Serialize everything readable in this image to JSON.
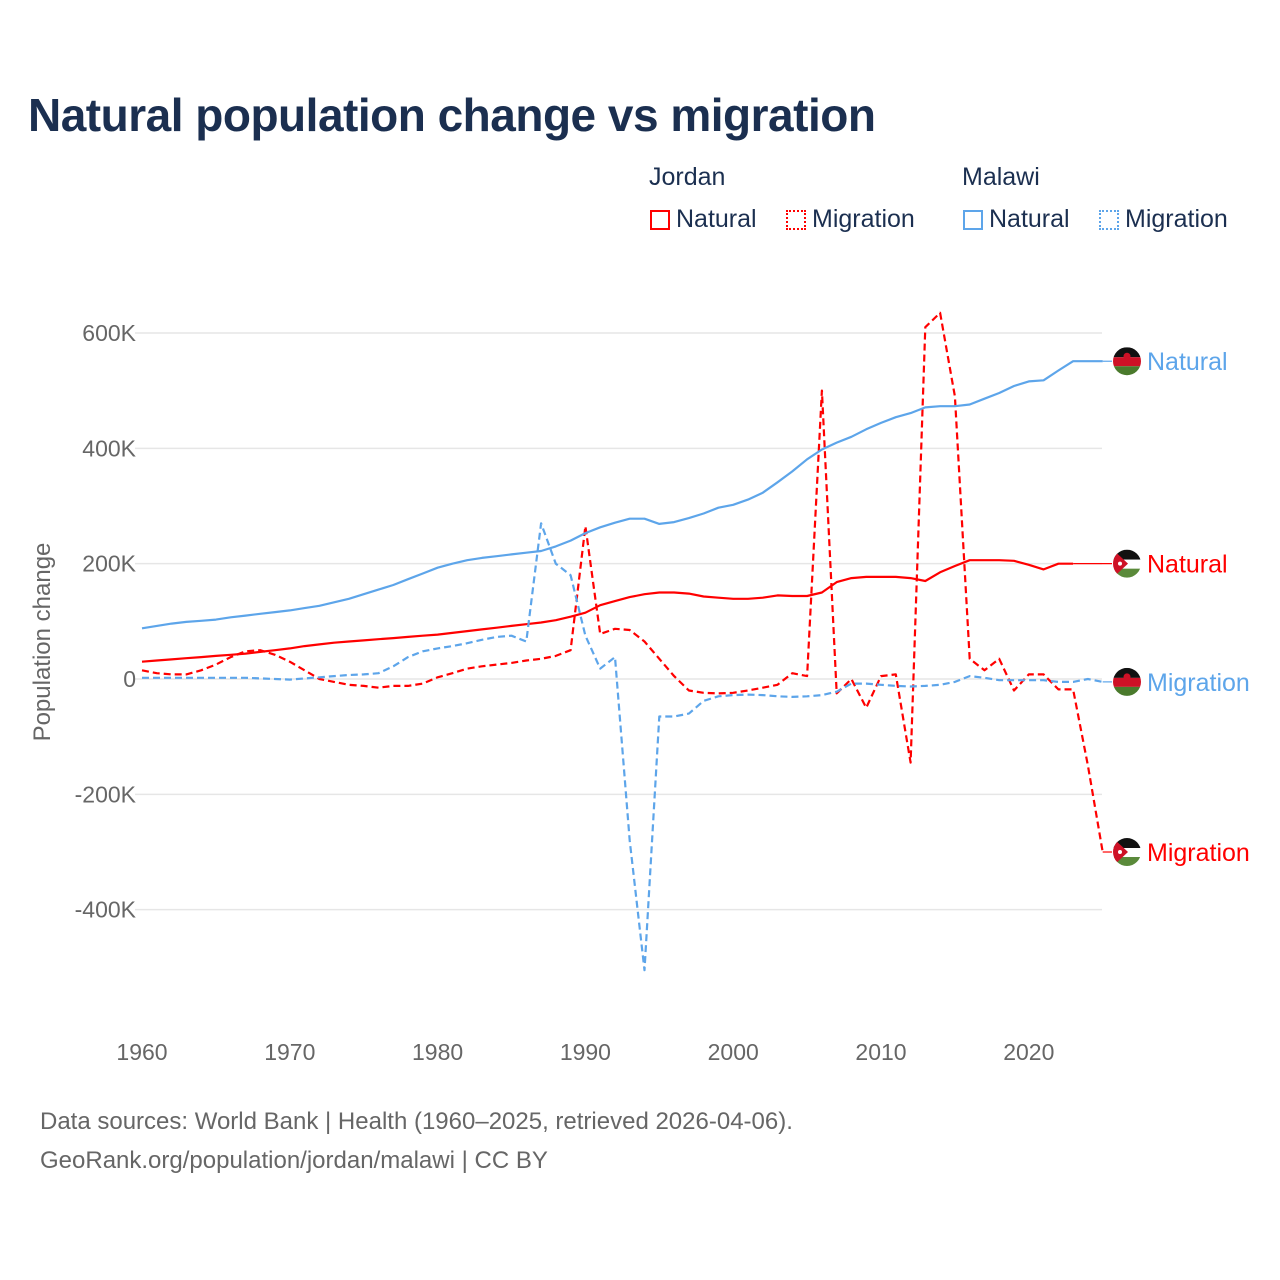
{
  "title": "Natural population change vs migration",
  "legend": {
    "groups": [
      {
        "name": "Jordan",
        "color": "#ff0000",
        "items": [
          "Natural",
          "Migration"
        ]
      },
      {
        "name": "Malawi",
        "color": "#5da5ea",
        "items": [
          "Natural",
          "Migration"
        ]
      }
    ]
  },
  "source_line1": "Data sources: World Bank | Health (1960–2025, retrieved 2026-04-06).",
  "source_line2": "GeoRank.org/population/jordan/malawi | CC BY",
  "chart_data": {
    "type": "line",
    "title": "Natural population change vs migration",
    "xlabel": "",
    "ylabel": "Population change",
    "xlim": [
      1960,
      2025
    ],
    "ylim": [
      -500000,
      650000
    ],
    "x_ticks": [
      1960,
      1970,
      1980,
      1990,
      2000,
      2010,
      2020
    ],
    "x_tick_labels": [
      "1960",
      "1970",
      "1980",
      "1990",
      "2000",
      "2010",
      "2020"
    ],
    "y_ticks": [
      -400000,
      -200000,
      0,
      200000,
      400000,
      600000
    ],
    "y_tick_labels": [
      "-400K",
      "-200K",
      "0",
      "200K",
      "400K",
      "600K"
    ],
    "grid": true,
    "legend_position": "top-right",
    "x_start": 1960,
    "series": [
      {
        "name": "Jordan Natural",
        "label": "Natural",
        "country": "Jordan",
        "color": "#ff0000",
        "dash": false,
        "values_k": [
          30,
          32,
          34,
          36,
          38,
          40,
          42,
          44,
          47,
          50,
          53,
          57,
          60,
          63,
          65,
          67,
          69,
          71,
          73,
          75,
          77,
          80,
          83,
          86,
          89,
          92,
          95,
          98,
          102,
          108,
          115,
          128,
          135,
          142,
          147,
          150,
          150,
          148,
          143,
          141,
          139,
          139,
          141,
          145,
          144,
          144,
          150,
          168,
          175,
          177,
          177,
          177,
          175,
          170,
          185,
          196,
          206,
          206,
          206,
          205,
          198,
          190,
          200,
          200
        ]
      },
      {
        "name": "Jordan Migration",
        "label": "Migration",
        "country": "Jordan",
        "color": "#ff0000",
        "dash": true,
        "values_k": [
          15,
          10,
          8,
          8,
          15,
          25,
          38,
          48,
          50,
          42,
          30,
          15,
          0,
          -5,
          -10,
          -12,
          -15,
          -12,
          -12,
          -8,
          3,
          10,
          18,
          22,
          25,
          28,
          32,
          35,
          40,
          50,
          265,
          78,
          87,
          85,
          65,
          35,
          5,
          -20,
          -24,
          -25,
          -24,
          -20,
          -15,
          -10,
          10,
          5,
          500,
          -25,
          0,
          -50,
          5,
          8,
          -145,
          610,
          635,
          490,
          35,
          15,
          35,
          -20,
          8,
          8,
          -18,
          -18,
          -150,
          -300
        ]
      },
      {
        "name": "Malawi Natural",
        "label": "Natural",
        "country": "Malawi",
        "color": "#5da5ea",
        "dash": false,
        "values_k": [
          88,
          92,
          96,
          99,
          101,
          103,
          107,
          110,
          113,
          116,
          119,
          123,
          127,
          133,
          139,
          147,
          155,
          163,
          173,
          183,
          193,
          200,
          206,
          210,
          213,
          216,
          219,
          222,
          230,
          240,
          253,
          263,
          271,
          278,
          278,
          269,
          272,
          279,
          287,
          297,
          302,
          311,
          323,
          341,
          360,
          381,
          398,
          410,
          420,
          433,
          444,
          454,
          461,
          471,
          473,
          473,
          476,
          486,
          496,
          508,
          516,
          518,
          535,
          551,
          551,
          551
        ]
      },
      {
        "name": "Malawi Migration",
        "label": "Migration",
        "country": "Malawi",
        "color": "#5da5ea",
        "dash": true,
        "values_k": [
          2,
          2,
          2,
          2,
          2,
          2,
          2,
          2,
          1,
          0,
          -1,
          1,
          3,
          5,
          7,
          8,
          10,
          22,
          38,
          48,
          53,
          57,
          62,
          68,
          73,
          75,
          65,
          270,
          200,
          180,
          75,
          18,
          38,
          -280,
          -505,
          -65,
          -65,
          -60,
          -38,
          -30,
          -28,
          -27,
          -28,
          -30,
          -31,
          -30,
          -28,
          -22,
          -8,
          -8,
          -10,
          -12,
          -13,
          -12,
          -10,
          -5,
          5,
          2,
          -2,
          -2,
          -2,
          -2,
          -5,
          -5,
          0,
          -5
        ]
      }
    ],
    "end_labels": [
      {
        "text": "Natural",
        "country": "Malawi",
        "color": "#5da5ea",
        "value_k": 551
      },
      {
        "text": "Natural",
        "country": "Jordan",
        "color": "#ff0000",
        "value_k": 200
      },
      {
        "text": "Migration",
        "country": "Malawi",
        "color": "#5da5ea",
        "value_k": -5
      },
      {
        "text": "Migration",
        "country": "Jordan",
        "color": "#ff0000",
        "value_k": -300
      }
    ]
  }
}
